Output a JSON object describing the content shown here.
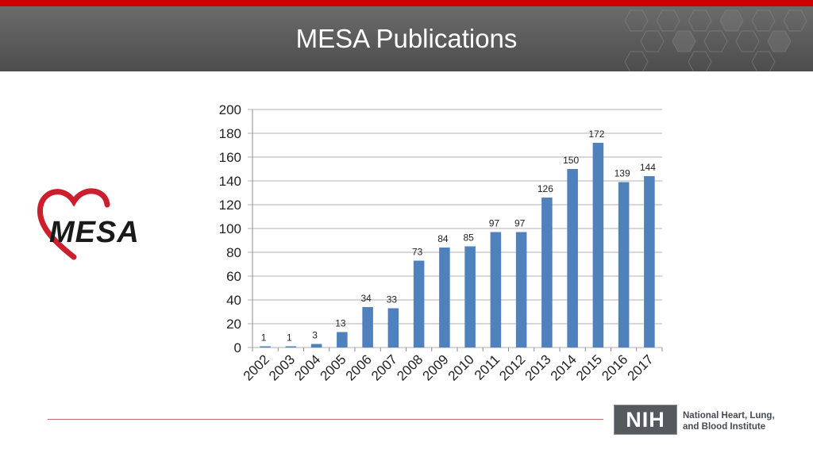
{
  "slide": {
    "title": "MESA Publications",
    "logo_text": "MESA",
    "nih_badge": "NIH",
    "nih_line1": "National Heart, Lung,",
    "nih_line2": "and Blood Institute"
  },
  "colors": {
    "bar": "#4f81bd",
    "accent_red": "#cc0000",
    "header_gray": "#595959"
  },
  "chart_data": {
    "type": "bar",
    "title": "",
    "xlabel": "",
    "ylabel": "",
    "categories": [
      "2002",
      "2003",
      "2004",
      "2005",
      "2006",
      "2007",
      "2008",
      "2009",
      "2010",
      "2011",
      "2012",
      "2013",
      "2014",
      "2015",
      "2016",
      "2017"
    ],
    "values": [
      1,
      1,
      3,
      13,
      34,
      33,
      73,
      84,
      85,
      97,
      97,
      126,
      150,
      172,
      139,
      144
    ],
    "ylim": [
      0,
      200
    ],
    "yticks": [
      0,
      20,
      40,
      60,
      80,
      100,
      120,
      140,
      160,
      180,
      200
    ],
    "grid": true,
    "legend": "none"
  }
}
